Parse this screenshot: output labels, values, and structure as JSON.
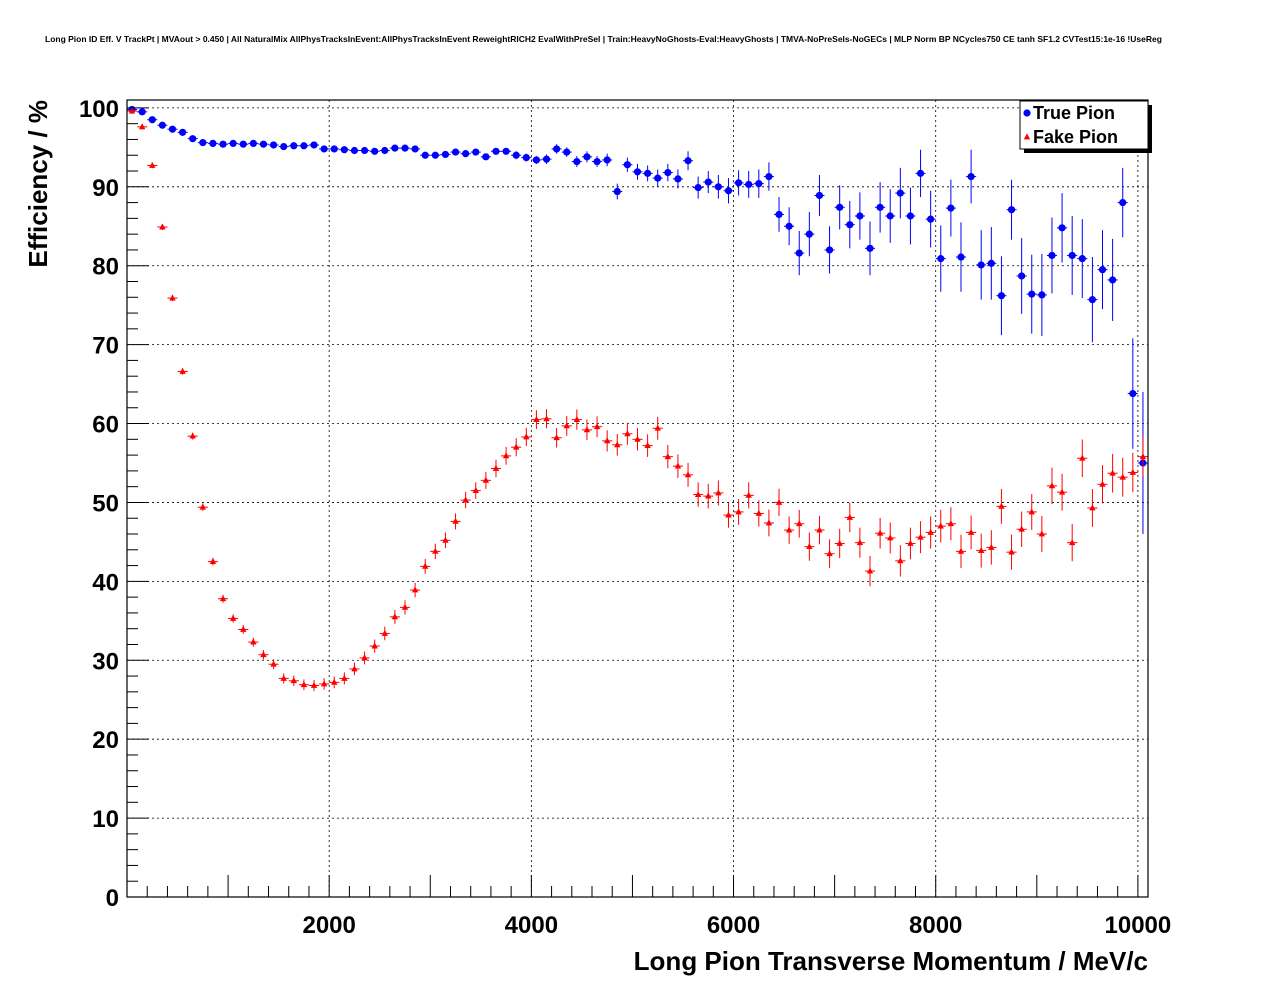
{
  "chart_data": {
    "type": "scatter",
    "title": "Long Pion ID Eff. V TrackPt | MVAout > 0.450 | All NaturalMix AllPhysTracksInEvent:AllPhysTracksInEvent ReweightRICH2 EvalWithPreSel | Train:HeavyNoGhosts-Eval:HeavyGhosts | TMVA-NoPreSels-NoGECs | MLP Norm BP NCycles750 CE tanh SF1.2 CVTest15:1e-16 !UseReg",
    "xlabel": "Long Pion Transverse Momentum / MeV/c",
    "ylabel": "Efficiency / %",
    "xlim": [
      0,
      10100
    ],
    "ylim": [
      0,
      101
    ],
    "x_ticks": [
      2000,
      4000,
      6000,
      8000,
      10000
    ],
    "y_ticks": [
      0,
      10,
      20,
      30,
      40,
      50,
      60,
      70,
      80,
      90,
      100
    ],
    "grid": true,
    "legend_position": "top-right",
    "series": [
      {
        "name": "True Pion",
        "color": "#0000ff",
        "marker": "circle",
        "x": [
          50,
          150,
          250,
          350,
          450,
          550,
          650,
          750,
          850,
          950,
          1050,
          1150,
          1250,
          1350,
          1450,
          1550,
          1650,
          1750,
          1850,
          1950,
          2050,
          2150,
          2250,
          2350,
          2450,
          2550,
          2650,
          2750,
          2850,
          2950,
          3050,
          3150,
          3250,
          3350,
          3450,
          3550,
          3650,
          3750,
          3850,
          3950,
          4050,
          4150,
          4250,
          4350,
          4450,
          4550,
          4650,
          4750,
          4850,
          4950,
          5050,
          5150,
          5250,
          5350,
          5450,
          5550,
          5650,
          5750,
          5850,
          5950,
          6050,
          6150,
          6250,
          6350,
          6450,
          6550,
          6650,
          6750,
          6850,
          6950,
          7050,
          7150,
          7250,
          7350,
          7450,
          7550,
          7650,
          7750,
          7850,
          7950,
          8050,
          8150,
          8250,
          8350,
          8450,
          8550,
          8650,
          8750,
          8850,
          8950,
          9050,
          9150,
          9250,
          9350,
          9450,
          9550,
          9650,
          9750,
          9850,
          9950,
          10050
        ],
        "y": [
          99.8,
          99.5,
          98.5,
          97.8,
          97.3,
          96.9,
          96.1,
          95.6,
          95.5,
          95.4,
          95.5,
          95.4,
          95.5,
          95.4,
          95.3,
          95.1,
          95.2,
          95.2,
          95.3,
          94.8,
          94.8,
          94.7,
          94.6,
          94.6,
          94.5,
          94.6,
          94.9,
          94.9,
          94.8,
          94.0,
          94.0,
          94.1,
          94.4,
          94.2,
          94.4,
          93.8,
          94.5,
          94.5,
          94.0,
          93.7,
          93.4,
          93.5,
          94.8,
          94.4,
          93.2,
          93.8,
          93.2,
          93.4,
          89.4,
          92.8,
          91.9,
          91.7,
          91.1,
          91.8,
          91.0,
          93.3,
          89.9,
          90.6,
          90.0,
          89.5,
          90.5,
          90.3,
          90.4,
          91.3,
          86.5,
          85.0,
          81.6,
          84.0,
          88.9,
          82.0,
          87.4,
          85.2,
          86.3,
          82.2,
          87.4,
          86.3,
          89.2,
          86.3,
          91.7,
          85.9,
          80.9,
          87.3,
          81.1,
          91.3,
          80.1,
          80.3,
          76.2,
          87.1,
          78.7,
          76.4,
          76.3,
          81.3,
          84.8,
          81.3,
          80.9,
          75.7,
          79.5,
          78.2,
          88.0,
          63.8,
          55.0
        ],
        "yerr": [
          0.1,
          0.2,
          0.2,
          0.2,
          0.2,
          0.2,
          0.2,
          0.2,
          0.2,
          0.2,
          0.2,
          0.2,
          0.2,
          0.2,
          0.2,
          0.2,
          0.2,
          0.2,
          0.2,
          0.2,
          0.2,
          0.2,
          0.2,
          0.2,
          0.3,
          0.3,
          0.3,
          0.3,
          0.3,
          0.3,
          0.3,
          0.3,
          0.3,
          0.4,
          0.4,
          0.4,
          0.4,
          0.4,
          0.5,
          0.5,
          0.5,
          0.6,
          0.6,
          0.6,
          0.7,
          0.7,
          0.7,
          0.8,
          1.0,
          0.9,
          1.0,
          1.0,
          1.1,
          1.1,
          1.2,
          1.2,
          1.4,
          1.4,
          1.5,
          1.6,
          1.6,
          1.7,
          1.8,
          1.8,
          2.2,
          2.4,
          2.8,
          2.8,
          2.6,
          3.0,
          2.8,
          3.0,
          3.0,
          3.4,
          3.2,
          3.4,
          3.2,
          3.6,
          3.0,
          3.6,
          4.2,
          3.6,
          4.4,
          3.4,
          4.4,
          4.6,
          5.0,
          3.8,
          4.8,
          5.0,
          5.2,
          4.8,
          4.4,
          5.0,
          5.0,
          5.4,
          5.0,
          5.2,
          4.4,
          7.0,
          9.0
        ]
      },
      {
        "name": "Fake Pion",
        "color": "#ff0000",
        "marker": "triangle",
        "x": [
          50,
          150,
          250,
          350,
          450,
          550,
          650,
          750,
          850,
          950,
          1050,
          1150,
          1250,
          1350,
          1450,
          1550,
          1650,
          1750,
          1850,
          1950,
          2050,
          2150,
          2250,
          2350,
          2450,
          2550,
          2650,
          2750,
          2850,
          2950,
          3050,
          3150,
          3250,
          3350,
          3450,
          3550,
          3650,
          3750,
          3850,
          3950,
          4050,
          4150,
          4250,
          4350,
          4450,
          4550,
          4650,
          4750,
          4850,
          4950,
          5050,
          5150,
          5250,
          5350,
          5450,
          5550,
          5650,
          5750,
          5850,
          5950,
          6050,
          6150,
          6250,
          6350,
          6450,
          6550,
          6650,
          6750,
          6850,
          6950,
          7050,
          7150,
          7250,
          7350,
          7450,
          7550,
          7650,
          7750,
          7850,
          7950,
          8050,
          8150,
          8250,
          8350,
          8450,
          8550,
          8650,
          8750,
          8850,
          8950,
          9050,
          9150,
          9250,
          9350,
          9450,
          9550,
          9650,
          9750,
          9850,
          9950,
          10050
        ],
        "y": [
          99.6,
          97.6,
          92.7,
          84.9,
          75.9,
          66.6,
          58.4,
          49.4,
          42.5,
          37.8,
          35.3,
          33.9,
          32.3,
          30.7,
          29.5,
          27.7,
          27.4,
          26.9,
          26.8,
          27.0,
          27.2,
          27.7,
          28.9,
          30.3,
          31.8,
          33.4,
          35.5,
          36.7,
          38.9,
          41.9,
          43.8,
          45.2,
          47.6,
          50.3,
          51.5,
          52.8,
          54.3,
          55.9,
          57.0,
          58.3,
          60.5,
          60.6,
          58.2,
          59.7,
          60.5,
          59.2,
          59.6,
          57.8,
          57.3,
          58.7,
          58.0,
          57.2,
          59.4,
          55.8,
          54.6,
          53.5,
          51.0,
          50.8,
          51.2,
          48.4,
          48.8,
          50.9,
          48.6,
          47.4,
          50.0,
          46.5,
          47.3,
          44.4,
          46.5,
          43.5,
          44.8,
          48.1,
          44.9,
          41.3,
          46.1,
          45.5,
          42.6,
          44.8,
          45.6,
          46.2,
          47.0,
          47.3,
          43.8,
          46.2,
          43.9,
          44.3,
          49.5,
          43.7,
          46.6,
          48.8,
          46.0,
          52.1,
          51.3,
          44.9,
          55.6,
          49.3,
          52.3,
          53.7,
          53.2,
          53.8,
          55.8
        ]
      }
    ]
  }
}
